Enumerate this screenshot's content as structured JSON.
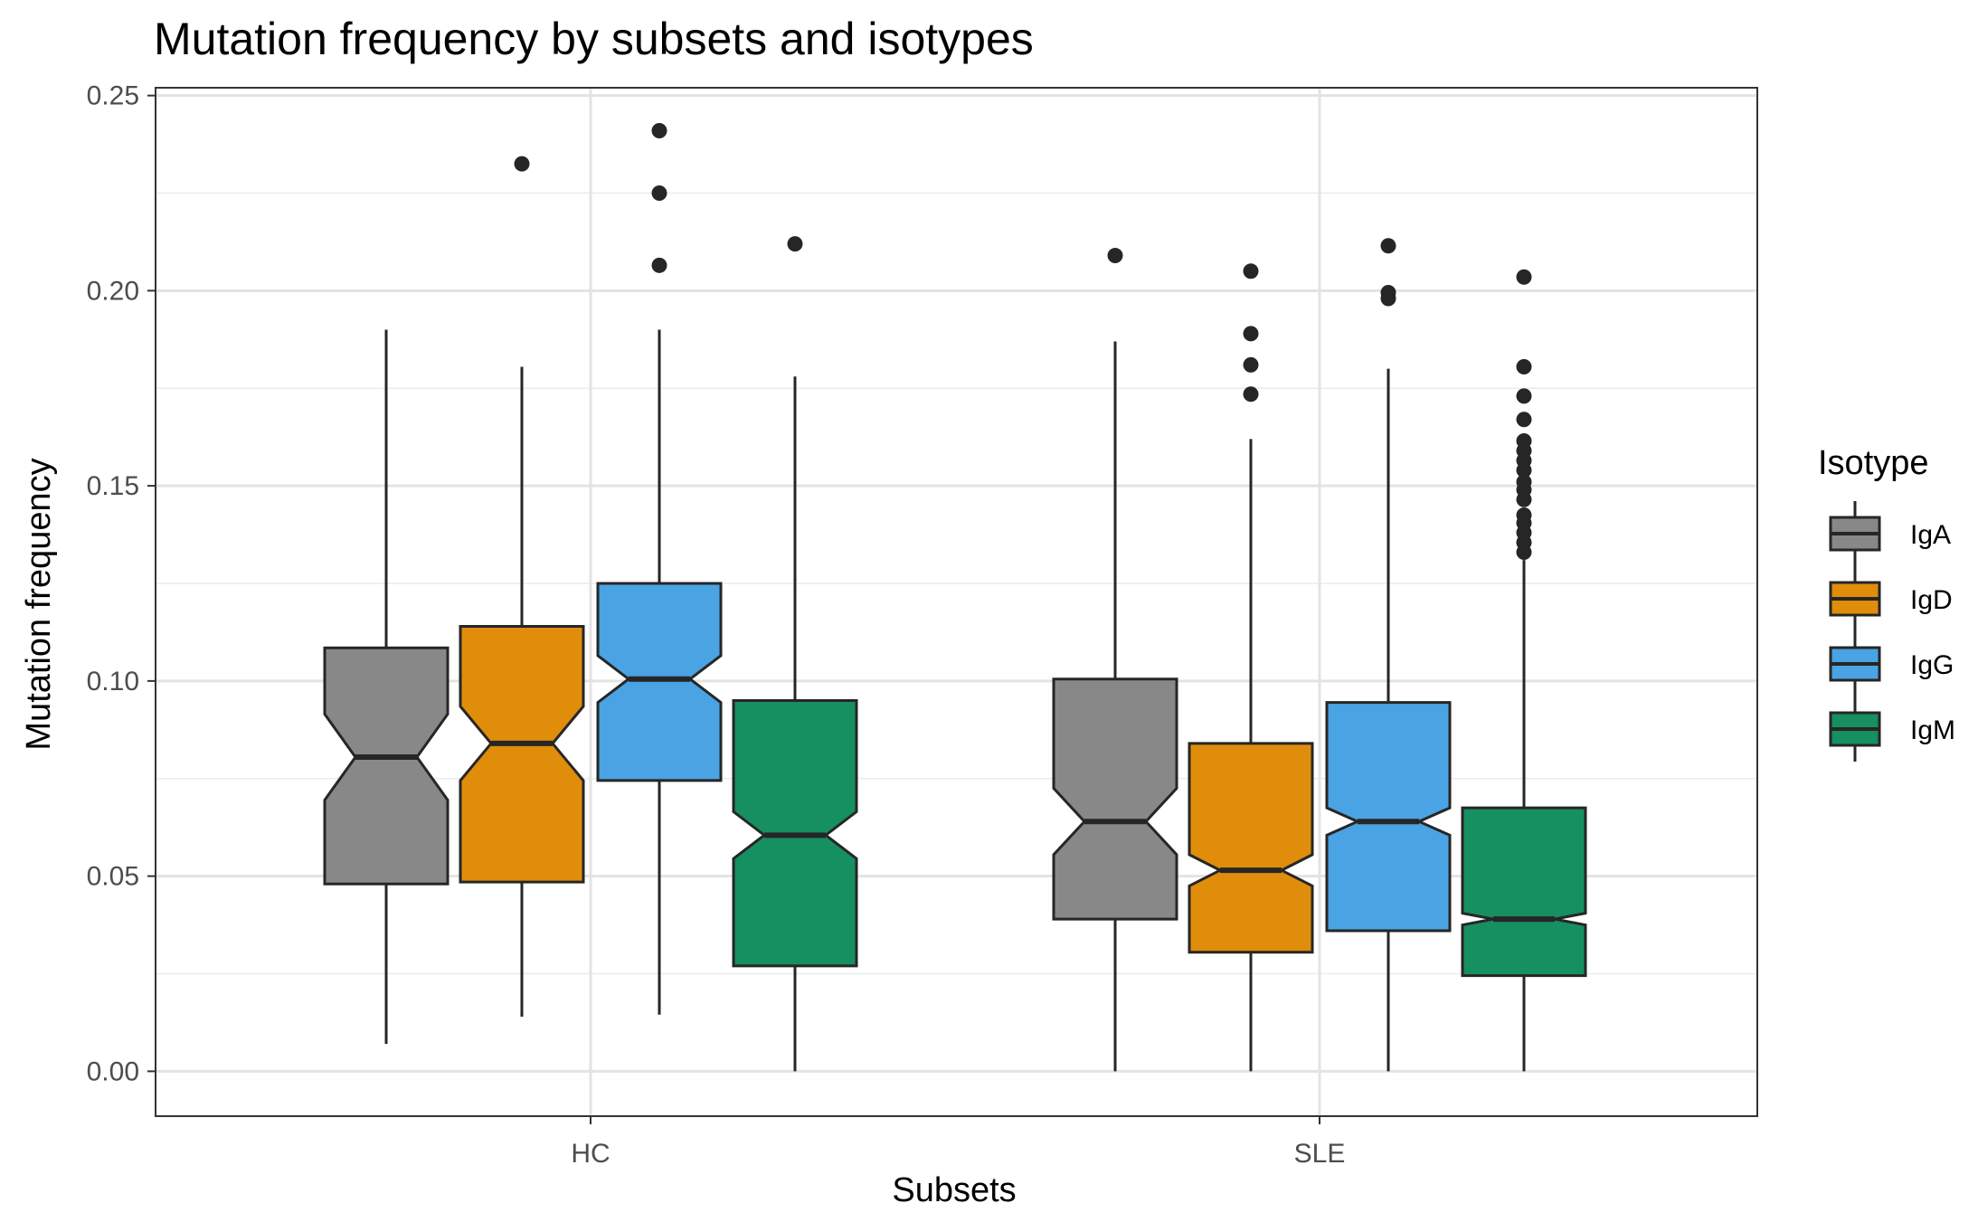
{
  "chart_data": {
    "type": "box",
    "title": "Mutation frequency by subsets and isotypes",
    "xlabel": "Subsets",
    "ylabel": "Mutation frequency",
    "ylim": [
      -0.0115,
      0.252
    ],
    "yticks": [
      "0.00",
      "0.05",
      "0.10",
      "0.15",
      "0.20",
      "0.25"
    ],
    "ytick_values": [
      0.0,
      0.05,
      0.1,
      0.15,
      0.2,
      0.25
    ],
    "categories": [
      "HC",
      "SLE"
    ],
    "grid": true,
    "notched": true,
    "legend": {
      "title": "Isotype",
      "position": "right"
    },
    "series": [
      {
        "name": "IgA",
        "color": "#888888",
        "boxes": [
          {
            "whisker_low": 0.007,
            "q1": 0.048,
            "median": 0.0805,
            "q3": 0.1085,
            "whisker_high": 0.19,
            "notch_low": 0.0695,
            "notch_high": 0.0915,
            "outliers": []
          },
          {
            "whisker_low": 0.0,
            "q1": 0.039,
            "median": 0.064,
            "q3": 0.1005,
            "whisker_high": 0.187,
            "notch_low": 0.0555,
            "notch_high": 0.0725,
            "outliers": [
              0.209
            ]
          }
        ]
      },
      {
        "name": "IgD",
        "color": "#E08D0B",
        "boxes": [
          {
            "whisker_low": 0.014,
            "q1": 0.0485,
            "median": 0.084,
            "q3": 0.114,
            "whisker_high": 0.1805,
            "notch_low": 0.0745,
            "notch_high": 0.0935,
            "outliers": [
              0.2325
            ]
          },
          {
            "whisker_low": 0.0,
            "q1": 0.0305,
            "median": 0.0515,
            "q3": 0.084,
            "whisker_high": 0.162,
            "notch_low": 0.0475,
            "notch_high": 0.0555,
            "outliers": [
              0.205,
              0.189,
              0.181,
              0.1735
            ]
          }
        ]
      },
      {
        "name": "IgG",
        "color": "#4AA3E3",
        "boxes": [
          {
            "whisker_low": 0.0145,
            "q1": 0.0745,
            "median": 0.1005,
            "q3": 0.125,
            "whisker_high": 0.19,
            "notch_low": 0.0945,
            "notch_high": 0.1065,
            "outliers": [
              0.241,
              0.225,
              0.2065
            ]
          },
          {
            "whisker_low": 0.0,
            "q1": 0.036,
            "median": 0.064,
            "q3": 0.0945,
            "whisker_high": 0.18,
            "notch_low": 0.0605,
            "notch_high": 0.0675,
            "outliers": [
              0.2115,
              0.1995,
              0.198
            ]
          }
        ]
      },
      {
        "name": "IgM",
        "color": "#168F61",
        "boxes": [
          {
            "whisker_low": 0.0,
            "q1": 0.027,
            "median": 0.0605,
            "q3": 0.095,
            "whisker_high": 0.178,
            "notch_low": 0.0545,
            "notch_high": 0.0665,
            "outliers": [
              0.212
            ]
          },
          {
            "whisker_low": 0.0,
            "q1": 0.0245,
            "median": 0.039,
            "q3": 0.0675,
            "whisker_high": 0.131,
            "notch_low": 0.0375,
            "notch_high": 0.0405,
            "outliers": [
              0.2035,
              0.1805,
              0.173,
              0.167,
              0.1615,
              0.159,
              0.1565,
              0.154,
              0.151,
              0.149,
              0.1465,
              0.1425,
              0.1405,
              0.138,
              0.1355,
              0.133
            ]
          }
        ]
      }
    ]
  }
}
